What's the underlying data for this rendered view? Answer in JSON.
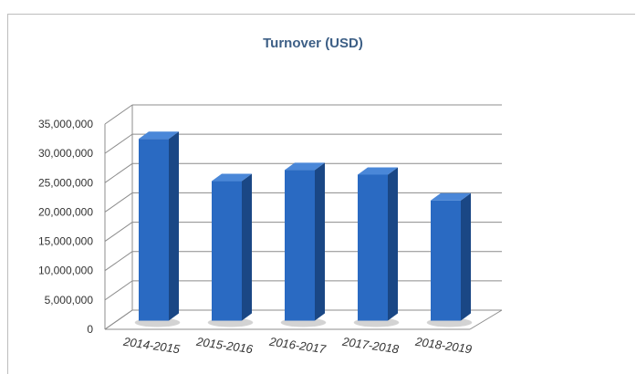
{
  "chart_data": {
    "type": "bar",
    "title": "Turnover (USD)",
    "categories": [
      "2014-2015",
      "2015-2016",
      "2016-2017",
      "2017-2018",
      "2018-2019"
    ],
    "values": [
      31000000,
      23800000,
      25700000,
      24900000,
      20500000
    ],
    "y_ticks": [
      "0",
      "5,000,000",
      "10,000,000",
      "15,000,000",
      "20,000,000",
      "25,000,000",
      "30,000,000",
      "35,000,000"
    ],
    "ylim": [
      0,
      35000000
    ],
    "grid": true,
    "legend": "none",
    "style": "3d-column",
    "colors": {
      "bar_front": "#2a6ac2",
      "bar_side": "#1a4785",
      "bar_top": "#4a87d8",
      "bar_shadow": "#c8c8c8",
      "grid": "#8c8c8c",
      "title": "#3d5f86"
    }
  }
}
